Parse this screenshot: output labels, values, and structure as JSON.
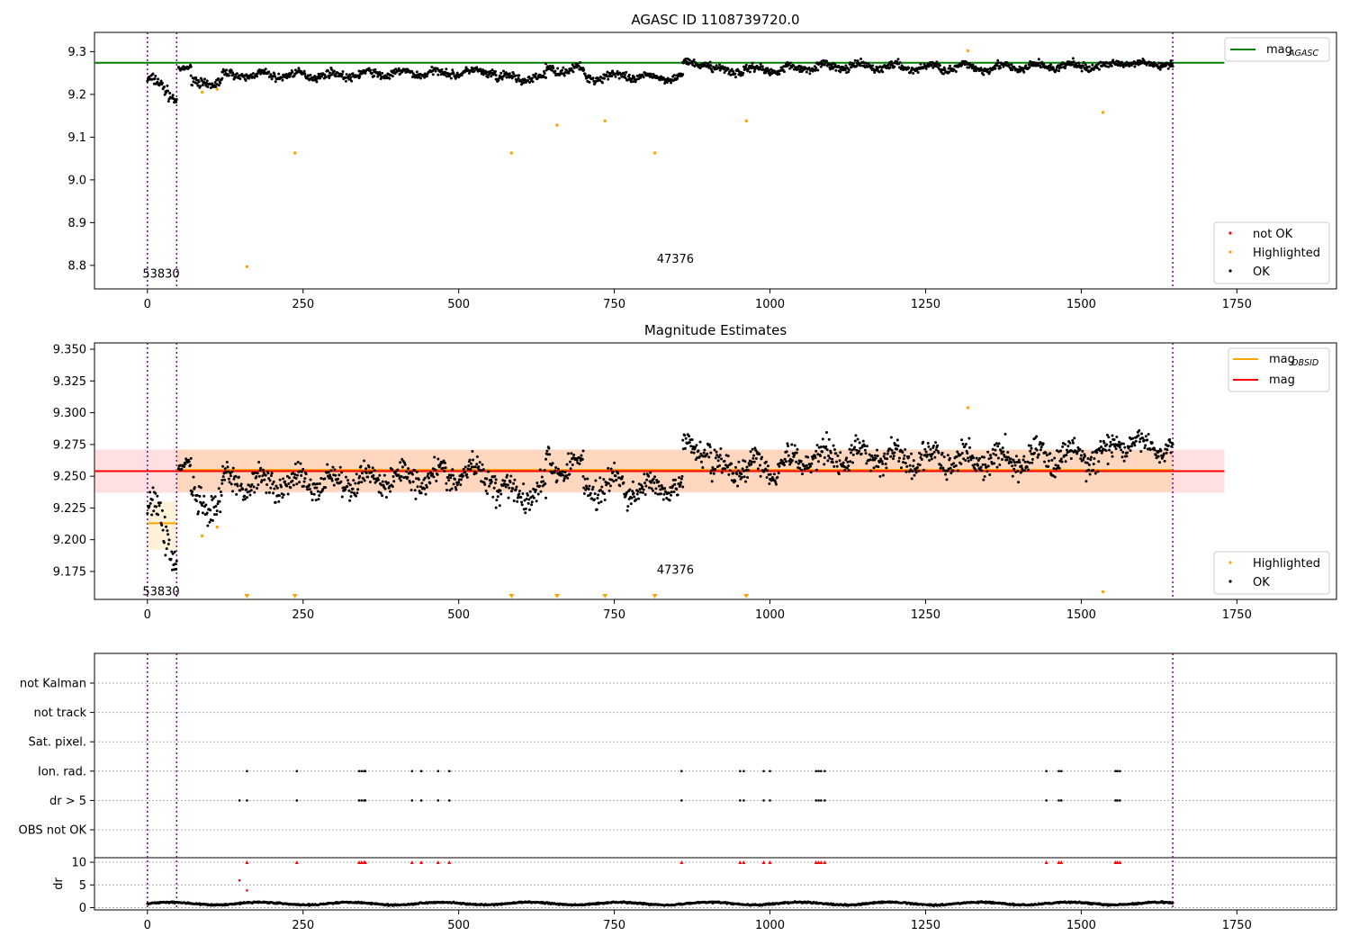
{
  "chart_data": [
    {
      "type": "scatter",
      "title": "AGASC ID 1108739720.0",
      "xlim": [
        -85,
        1910
      ],
      "ylim": [
        8.745,
        9.345
      ],
      "xticks": [
        0,
        250,
        500,
        750,
        1000,
        1250,
        1500,
        1750
      ],
      "yticks": [
        8.8,
        8.9,
        9.0,
        9.1,
        9.2,
        9.3
      ],
      "ytick_labels": [
        "8.8",
        "8.9",
        "9.0",
        "9.1",
        "9.2",
        "9.3"
      ],
      "vlines": [
        0,
        47,
        1647
      ],
      "obsid_labels": [
        {
          "text": "53830",
          "x": 22,
          "y": 8.78
        },
        {
          "text": "47376",
          "x": 848,
          "y": 8.815
        }
      ],
      "mag_agasc": {
        "value": 9.274,
        "x_range": [
          -85,
          1730
        ],
        "color": "#008000"
      },
      "highlighted": {
        "x": [
          88,
          112,
          160,
          237,
          585,
          658,
          735,
          815,
          962,
          1318,
          1535
        ],
        "y": [
          9.205,
          9.212,
          8.797,
          9.063,
          9.063,
          9.128,
          9.138,
          9.063,
          9.138,
          9.302,
          9.158
        ],
        "color": "#ffa500"
      },
      "ok_segments": [
        {
          "x0": 0,
          "x1": 47,
          "mean": 9.215,
          "spread": 0.028,
          "slope": -0.04
        },
        {
          "x0": 50,
          "x1": 70,
          "mean": 9.26,
          "spread": 0.01,
          "slope": 0
        },
        {
          "x0": 70,
          "x1": 120,
          "mean": 9.228,
          "spread": 0.022,
          "slope": 0
        },
        {
          "x0": 120,
          "x1": 340,
          "mean": 9.245,
          "spread": 0.018,
          "slope": 0
        },
        {
          "x0": 340,
          "x1": 560,
          "mean": 9.25,
          "spread": 0.018,
          "slope": 0.005
        },
        {
          "x0": 560,
          "x1": 640,
          "mean": 9.238,
          "spread": 0.02,
          "slope": 0
        },
        {
          "x0": 640,
          "x1": 700,
          "mean": 9.258,
          "spread": 0.018,
          "slope": 0
        },
        {
          "x0": 700,
          "x1": 780,
          "mean": 9.242,
          "spread": 0.022,
          "slope": 0
        },
        {
          "x0": 780,
          "x1": 860,
          "mean": 9.24,
          "spread": 0.016,
          "slope": 0
        },
        {
          "x0": 860,
          "x1": 905,
          "mean": 9.272,
          "spread": 0.014,
          "slope": 0
        },
        {
          "x0": 905,
          "x1": 1050,
          "mean": 9.258,
          "spread": 0.02,
          "slope": 0.005
        },
        {
          "x0": 1050,
          "x1": 1200,
          "mean": 9.265,
          "spread": 0.018,
          "slope": 0
        },
        {
          "x0": 1200,
          "x1": 1420,
          "mean": 9.263,
          "spread": 0.02,
          "slope": 0
        },
        {
          "x0": 1420,
          "x1": 1550,
          "mean": 9.266,
          "spread": 0.018,
          "slope": 0
        },
        {
          "x0": 1550,
          "x1": 1647,
          "mean": 9.272,
          "spread": 0.014,
          "slope": -0.005
        }
      ],
      "legend_lines": [
        {
          "label": "mag",
          "sub": "AGASC",
          "color": "#008000"
        }
      ],
      "legend_points": [
        {
          "label": "not OK",
          "color": "#ff0000"
        },
        {
          "label": "Highlighted",
          "color": "#ffa500"
        },
        {
          "label": "OK",
          "color": "#000000"
        }
      ]
    },
    {
      "type": "scatter",
      "title": "Magnitude Estimates",
      "xlim": [
        -85,
        1910
      ],
      "ylim": [
        9.153,
        9.355
      ],
      "xticks": [
        0,
        250,
        500,
        750,
        1000,
        1250,
        1500,
        1750
      ],
      "yticks": [
        9.175,
        9.2,
        9.225,
        9.25,
        9.275,
        9.3,
        9.325,
        9.35
      ],
      "ytick_labels": [
        "9.175",
        "9.200",
        "9.225",
        "9.250",
        "9.275",
        "9.300",
        "9.325",
        "9.350"
      ],
      "vlines": [
        0,
        47,
        1647
      ],
      "obsid_labels": [
        {
          "text": "53830",
          "x": 22,
          "y": 9.159
        },
        {
          "text": "47376",
          "x": 848,
          "y": 9.176
        }
      ],
      "mag": {
        "value": 9.254,
        "band": [
          9.237,
          9.271
        ],
        "x_range": [
          -85,
          1730
        ],
        "color": "#ff0000"
      },
      "mag_obsid": [
        {
          "x0": 0,
          "x1": 47,
          "value": 9.213,
          "band": [
            9.192,
            9.23
          ],
          "color": "#ffa500"
        },
        {
          "x0": 47,
          "x1": 1647,
          "value": 9.255,
          "band": [
            9.238,
            9.271
          ],
          "color": "#ffa500"
        }
      ],
      "highlighted": {
        "x": [
          88,
          112,
          1318,
          1535
        ],
        "y": [
          9.203,
          9.21,
          9.304,
          9.159
        ],
        "color": "#ffa500"
      },
      "lower_limit_markers": {
        "x": [
          160,
          237,
          585,
          658,
          735,
          815,
          962
        ],
        "color": "#ffa500"
      },
      "ok_segments": [
        {
          "x0": 0,
          "x1": 47,
          "mean": 9.21,
          "spread": 0.03,
          "slope": -0.04
        },
        {
          "x0": 50,
          "x1": 70,
          "mean": 9.258,
          "spread": 0.01,
          "slope": 0
        },
        {
          "x0": 70,
          "x1": 120,
          "mean": 9.228,
          "spread": 0.024,
          "slope": 0
        },
        {
          "x0": 120,
          "x1": 340,
          "mean": 9.245,
          "spread": 0.02,
          "slope": 0
        },
        {
          "x0": 340,
          "x1": 560,
          "mean": 9.25,
          "spread": 0.02,
          "slope": 0.005
        },
        {
          "x0": 560,
          "x1": 640,
          "mean": 9.238,
          "spread": 0.022,
          "slope": 0
        },
        {
          "x0": 640,
          "x1": 700,
          "mean": 9.258,
          "spread": 0.02,
          "slope": 0
        },
        {
          "x0": 700,
          "x1": 780,
          "mean": 9.242,
          "spread": 0.024,
          "slope": 0
        },
        {
          "x0": 780,
          "x1": 860,
          "mean": 9.24,
          "spread": 0.018,
          "slope": 0
        },
        {
          "x0": 860,
          "x1": 905,
          "mean": 9.272,
          "spread": 0.016,
          "slope": 0
        },
        {
          "x0": 905,
          "x1": 1050,
          "mean": 9.258,
          "spread": 0.022,
          "slope": 0.005
        },
        {
          "x0": 1050,
          "x1": 1200,
          "mean": 9.266,
          "spread": 0.02,
          "slope": 0
        },
        {
          "x0": 1200,
          "x1": 1420,
          "mean": 9.263,
          "spread": 0.022,
          "slope": 0
        },
        {
          "x0": 1420,
          "x1": 1550,
          "mean": 9.266,
          "spread": 0.02,
          "slope": 0
        },
        {
          "x0": 1550,
          "x1": 1647,
          "mean": 9.274,
          "spread": 0.015,
          "slope": -0.005
        }
      ],
      "legend_lines": [
        {
          "label": "mag",
          "sub": "OBSID",
          "color": "#ffa500"
        },
        {
          "label": "mag",
          "sub": "",
          "color": "#ff0000"
        }
      ],
      "legend_points": [
        {
          "label": "Highlighted",
          "color": "#ffa500"
        },
        {
          "label": "OK",
          "color": "#000000"
        }
      ]
    },
    {
      "type": "scatter",
      "title": "",
      "xlim": [
        -85,
        1910
      ],
      "vlines": [
        0,
        47,
        1647
      ],
      "flag_rows": [
        "not Kalman",
        "not track",
        "Sat. pixel.",
        "Ion. rad.",
        "dr > 5",
        "OBS not OK"
      ],
      "flags": {
        "Ion. rad.": [
          160,
          240,
          340,
          344,
          348,
          350,
          425,
          440,
          467,
          485,
          858,
          952,
          958,
          990,
          1000,
          1074,
          1078,
          1082,
          1088,
          1444,
          1464,
          1468,
          1555,
          1558,
          1562
        ],
        "dr > 5": [
          148,
          160,
          240,
          340,
          344,
          348,
          350,
          425,
          440,
          467,
          485,
          858,
          952,
          958,
          990,
          1000,
          1074,
          1078,
          1082,
          1088,
          1444,
          1464,
          1468,
          1555,
          1558,
          1562
        ]
      },
      "dr_panel": {
        "ylabel": "dr",
        "ylim": [
          -0.5,
          11
        ],
        "yticks": [
          0,
          5,
          10
        ],
        "ytick_labels": [
          "0",
          "5",
          "10"
        ],
        "clip_value": 10,
        "clipped_markers_x": [
          160,
          240,
          340,
          344,
          348,
          350,
          425,
          440,
          467,
          485,
          858,
          952,
          958,
          990,
          1000,
          1074,
          1078,
          1082,
          1088,
          1444,
          1464,
          1468,
          1555,
          1558,
          1562
        ],
        "red_points": [
          {
            "x": 148,
            "y": 6.0
          },
          {
            "x": 160,
            "y": 3.8
          }
        ],
        "ok_baseline": {
          "mean": 0.9,
          "amplitude": 0.5,
          "x0": 0,
          "x1": 1647
        }
      }
    }
  ]
}
